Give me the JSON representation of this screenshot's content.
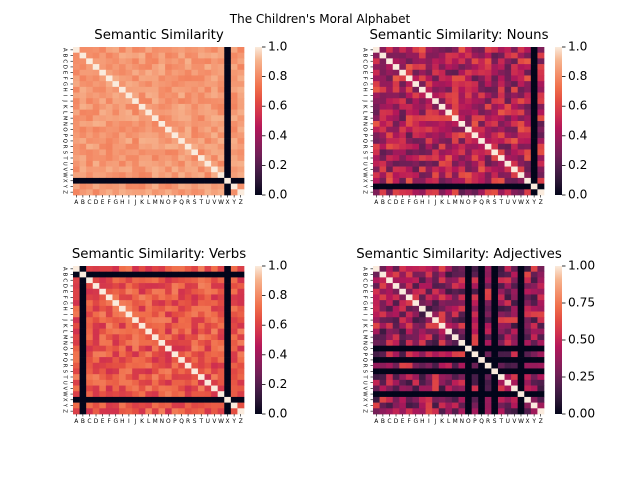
{
  "figure": {
    "suptitle": "The Children's Moral Alphabet"
  },
  "labels": [
    "A",
    "B",
    "C",
    "D",
    "E",
    "F",
    "G",
    "H",
    "I",
    "J",
    "K",
    "L",
    "M",
    "N",
    "O",
    "P",
    "Q",
    "R",
    "S",
    "T",
    "U",
    "V",
    "W",
    "X",
    "Y",
    "Z"
  ],
  "colormap": {
    "name": "rocket",
    "stops": [
      "#03051a",
      "#2a1635",
      "#4c1d4b",
      "#711f57",
      "#921c5b",
      "#b3175a",
      "#d0304e",
      "#e34c42",
      "#f06f4b",
      "#f4906b",
      "#f6b48e",
      "#faebdd"
    ]
  },
  "chart_data": [
    {
      "type": "heatmap",
      "title": "Semantic Similarity",
      "row_labels": "labels",
      "col_labels": "labels",
      "vmin": 0,
      "vmax": 1,
      "colorbar_ticks": [
        "0.0",
        "0.2",
        "0.4",
        "0.6",
        "0.8",
        "1.0"
      ],
      "zero_indices": [
        23
      ],
      "base_level": 0.84,
      "variation": 0.06,
      "seed": 11,
      "diagonal": 1.0
    },
    {
      "type": "heatmap",
      "title": "Semantic Similarity: Nouns",
      "row_labels": "labels",
      "col_labels": "labels",
      "vmin": 0,
      "vmax": 1,
      "colorbar_ticks": [
        "0.0",
        "0.2",
        "0.4",
        "0.6",
        "0.8",
        "1.0"
      ],
      "zero_indices": [
        24
      ],
      "base_level": 0.45,
      "variation": 0.22,
      "seed": 27,
      "diagonal": 1.0
    },
    {
      "type": "heatmap",
      "title": "Semantic Similarity: Verbs",
      "row_labels": "labels",
      "col_labels": "labels",
      "vmin": 0,
      "vmax": 1,
      "colorbar_ticks": [
        "0.0",
        "0.2",
        "0.4",
        "0.6",
        "0.8",
        "1.0"
      ],
      "zero_indices": [
        1,
        23
      ],
      "base_level": 0.66,
      "variation": 0.12,
      "seed": 43,
      "diagonal": 1.0
    },
    {
      "type": "heatmap",
      "title": "Semantic Similarity: Adjectives",
      "row_labels": "labels",
      "col_labels": "labels",
      "vmin": 0,
      "vmax": 1,
      "colorbar_ticks": [
        "0.00",
        "0.25",
        "0.50",
        "0.75",
        "1.00"
      ],
      "zero_indices": [
        14,
        16,
        18,
        22
      ],
      "base_level": 0.38,
      "variation": 0.24,
      "seed": 59,
      "diagonal": 1.0
    }
  ]
}
